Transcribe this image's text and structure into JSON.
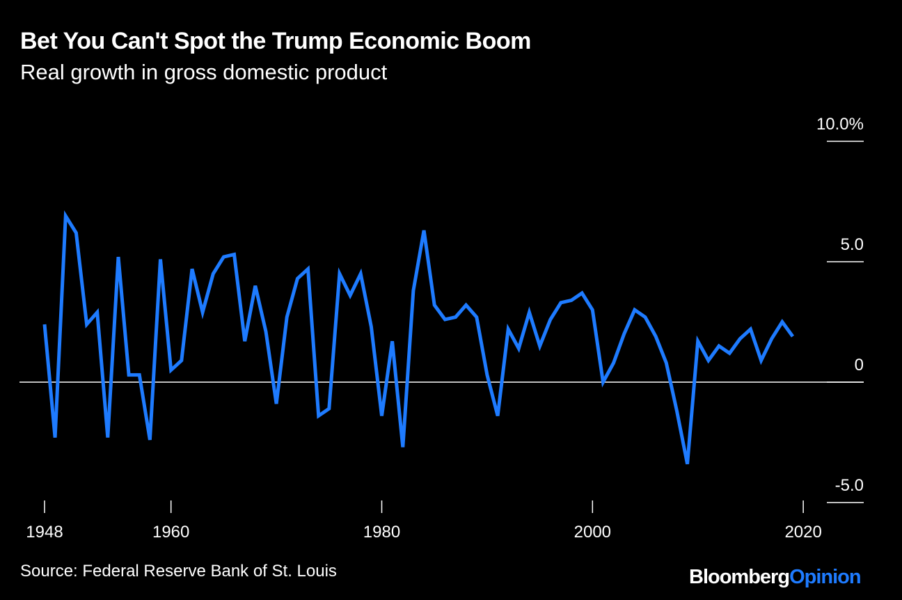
{
  "header": {
    "title": "Bet You Can't Spot the Trump Economic Boom",
    "subtitle": "Real growth in gross domestic product"
  },
  "footer": {
    "source": "Source: Federal Reserve Bank of St. Louis",
    "brand_part1": "Bloomberg",
    "brand_part2": "Opinion"
  },
  "colors": {
    "background": "#000000",
    "line": "#1e7bff",
    "zero_line": "#ffffff",
    "text": "#ffffff"
  },
  "chart_data": {
    "type": "line",
    "title": "Bet You Can't Spot the Trump Economic Boom",
    "subtitle": "Real growth in gross domestic product",
    "ylim": [
      -5,
      10
    ],
    "xlim": [
      1948,
      2019
    ],
    "y_ticks": [
      {
        "value": 10,
        "label": "10.0%"
      },
      {
        "value": 5,
        "label": "5.0"
      },
      {
        "value": 0,
        "label": "0"
      },
      {
        "value": -5,
        "label": "-5.0"
      }
    ],
    "x_ticks": [
      {
        "value": 1948,
        "label": "1948"
      },
      {
        "value": 1960,
        "label": "1960"
      },
      {
        "value": 1980,
        "label": "1980"
      },
      {
        "value": 2000,
        "label": "2000"
      },
      {
        "value": 2020,
        "label": "2020"
      }
    ],
    "y_axis_position": "right",
    "grid": false,
    "series": [
      {
        "x": [
          1948,
          1949,
          1950,
          1951,
          1952,
          1953,
          1954,
          1955,
          1956,
          1957,
          1958,
          1959,
          1960,
          1961,
          1962,
          1963,
          1964,
          1965,
          1966,
          1967,
          1968,
          1969,
          1970,
          1971,
          1972,
          1973,
          1974,
          1975,
          1976,
          1977,
          1978,
          1979,
          1980,
          1981,
          1982,
          1983,
          1984,
          1985,
          1986,
          1987,
          1988,
          1989,
          1990,
          1991,
          1992,
          1993,
          1994,
          1995,
          1996,
          1997,
          1998,
          1999,
          2000,
          2001,
          2002,
          2003,
          2004,
          2005,
          2006,
          2007,
          2008,
          2009,
          2010,
          2011,
          2012,
          2013,
          2014,
          2015,
          2016,
          2017,
          2018,
          2019
        ],
        "values": [
          2.4,
          -2.3,
          6.9,
          6.2,
          2.4,
          2.9,
          -2.3,
          5.2,
          0.3,
          0.3,
          -2.4,
          5.1,
          0.5,
          0.9,
          4.7,
          2.9,
          4.5,
          5.2,
          5.3,
          1.7,
          4.0,
          2.1,
          -0.9,
          2.7,
          4.3,
          4.7,
          -1.4,
          -1.1,
          4.5,
          3.6,
          4.5,
          2.3,
          -1.4,
          1.7,
          -2.7,
          3.8,
          6.3,
          3.2,
          2.6,
          2.7,
          3.2,
          2.7,
          0.3,
          -1.4,
          2.2,
          1.4,
          2.9,
          1.5,
          2.6,
          3.3,
          3.4,
          3.7,
          3.0,
          0.0,
          0.8,
          2.0,
          3.0,
          2.7,
          1.9,
          0.8,
          -1.2,
          -3.4,
          1.7,
          0.9,
          1.5,
          1.2,
          1.8,
          2.2,
          0.9,
          1.8,
          2.5,
          1.9
        ]
      }
    ]
  }
}
